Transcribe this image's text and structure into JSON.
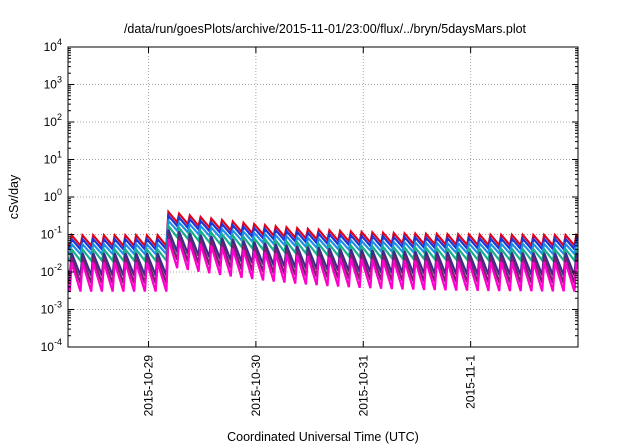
{
  "chart_data": {
    "type": "line",
    "title": "/data/run/goesPlots/archive/2015-11-01/23:00/flux/../bryn/5daysMars.plot",
    "xlabel": "Coordinated Universal Time (UTC)",
    "ylabel": "cSv/day",
    "yscale": "log",
    "ylim": [
      0.0001,
      10000
    ],
    "y_ticks": [
      {
        "base": "10",
        "exp": "-4"
      },
      {
        "base": "10",
        "exp": "-3"
      },
      {
        "base": "10",
        "exp": "-2"
      },
      {
        "base": "10",
        "exp": "-1"
      },
      {
        "base": "10",
        "exp": "0"
      },
      {
        "base": "10",
        "exp": "1"
      },
      {
        "base": "10",
        "exp": "2"
      },
      {
        "base": "10",
        "exp": "3"
      },
      {
        "base": "10",
        "exp": "4"
      }
    ],
    "xlim": [
      "2015-10-28T06:00",
      "2015-11-02T00:00"
    ],
    "x_ticks": [
      "2015-10-29",
      "2015-10-30",
      "2015-10-31",
      "2015-11-1"
    ],
    "grid": true,
    "pattern": "sawtooth",
    "spike_interval_hours": 2.4,
    "event": {
      "start": "2015-10-29T06:00",
      "peak_level_factor": 4.3,
      "decay_hours": 36
    },
    "series": [
      {
        "color": "#e3001a",
        "baseline_peak": 0.095,
        "baseline_trough": 0.05
      },
      {
        "color": "#1a35d8",
        "baseline_peak": 0.075,
        "baseline_trough": 0.04
      },
      {
        "color": "#1e8fe8",
        "baseline_peak": 0.055,
        "baseline_trough": 0.03
      },
      {
        "color": "#17b08a",
        "baseline_peak": 0.04,
        "baseline_trough": 0.02
      },
      {
        "color": "#3a2a8a",
        "baseline_peak": 0.032,
        "baseline_trough": 0.008
      },
      {
        "color": "#7a1f6e",
        "baseline_peak": 0.024,
        "baseline_trough": 0.005
      },
      {
        "color": "#ff00cc",
        "baseline_peak": 0.018,
        "baseline_trough": 0.003
      }
    ]
  }
}
